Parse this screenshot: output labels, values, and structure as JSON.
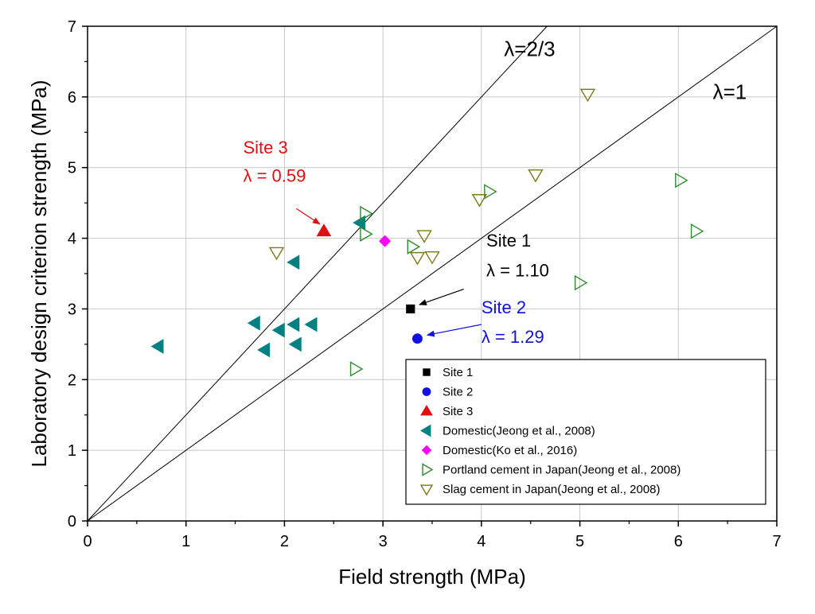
{
  "chart_data": {
    "type": "scatter",
    "xlabel": "Field strength (MPa)",
    "ylabel": "Laboratory design criterion strength (MPa)",
    "xlim": [
      0,
      7
    ],
    "ylim": [
      0,
      7
    ],
    "xticks": [
      "0",
      "1",
      "2",
      "3",
      "4",
      "5",
      "6",
      "7"
    ],
    "yticks": [
      "0",
      "1",
      "2",
      "3",
      "4",
      "5",
      "6",
      "7"
    ],
    "grid": true,
    "legend_position": "bottom-right",
    "reference_lines": [
      {
        "label": "λ=2/3",
        "slope": 1.5
      },
      {
        "label": "λ=1",
        "slope": 1.0
      }
    ],
    "series": [
      {
        "name": "Site 1",
        "marker": "square",
        "color": "#000000",
        "filled": true,
        "points": [
          [
            3.28,
            3.0
          ]
        ]
      },
      {
        "name": "Site 2",
        "marker": "circle",
        "color": "#1010e0",
        "filled": true,
        "points": [
          [
            3.35,
            2.58
          ]
        ]
      },
      {
        "name": "Site 3",
        "marker": "triangle-up",
        "color": "#e01010",
        "filled": true,
        "points": [
          [
            2.4,
            4.1
          ]
        ]
      },
      {
        "name": "Domestic(Jeong et al., 2008)",
        "marker": "triangle-left",
        "color": "#008080",
        "filled": true,
        "points": [
          [
            0.72,
            2.47
          ],
          [
            1.7,
            2.8
          ],
          [
            1.8,
            2.42
          ],
          [
            1.95,
            2.7
          ],
          [
            2.1,
            2.78
          ],
          [
            2.12,
            2.5
          ],
          [
            2.28,
            2.78
          ],
          [
            2.1,
            3.66
          ],
          [
            2.77,
            4.22
          ]
        ]
      },
      {
        "name": "Domestic(Ko et al., 2016)",
        "marker": "diamond",
        "color": "#ff00ff",
        "filled": true,
        "points": [
          [
            3.02,
            3.96
          ]
        ]
      },
      {
        "name": "Portland cement in Japan(Jeong et al., 2008)",
        "marker": "triangle-right",
        "color": "#2e8b2e",
        "filled": false,
        "points": [
          [
            2.72,
            2.15
          ],
          [
            2.82,
            4.35
          ],
          [
            2.82,
            4.06
          ],
          [
            3.3,
            3.88
          ],
          [
            4.08,
            4.66
          ],
          [
            5.0,
            3.37
          ],
          [
            6.02,
            4.82
          ],
          [
            6.18,
            4.1
          ]
        ]
      },
      {
        "name": "Slag cement in Japan(Jeong et al., 2008)",
        "marker": "triangle-down",
        "color": "#7a7a1a",
        "filled": false,
        "points": [
          [
            1.92,
            3.8
          ],
          [
            3.35,
            3.73
          ],
          [
            3.42,
            4.04
          ],
          [
            3.5,
            3.74
          ],
          [
            3.98,
            4.55
          ],
          [
            4.55,
            4.9
          ],
          [
            5.08,
            6.04
          ]
        ]
      }
    ],
    "annotations": [
      {
        "line1": "Site 1",
        "line2": "λ = 1.10",
        "color": "#000000",
        "target": "Site 1"
      },
      {
        "line1": "Site 2",
        "line2": "λ = 1.29",
        "color": "#1010e0",
        "target": "Site 2"
      },
      {
        "line1": "Site 3",
        "line2": "λ = 0.59",
        "color": "#e01010",
        "target": "Site 3"
      }
    ]
  }
}
